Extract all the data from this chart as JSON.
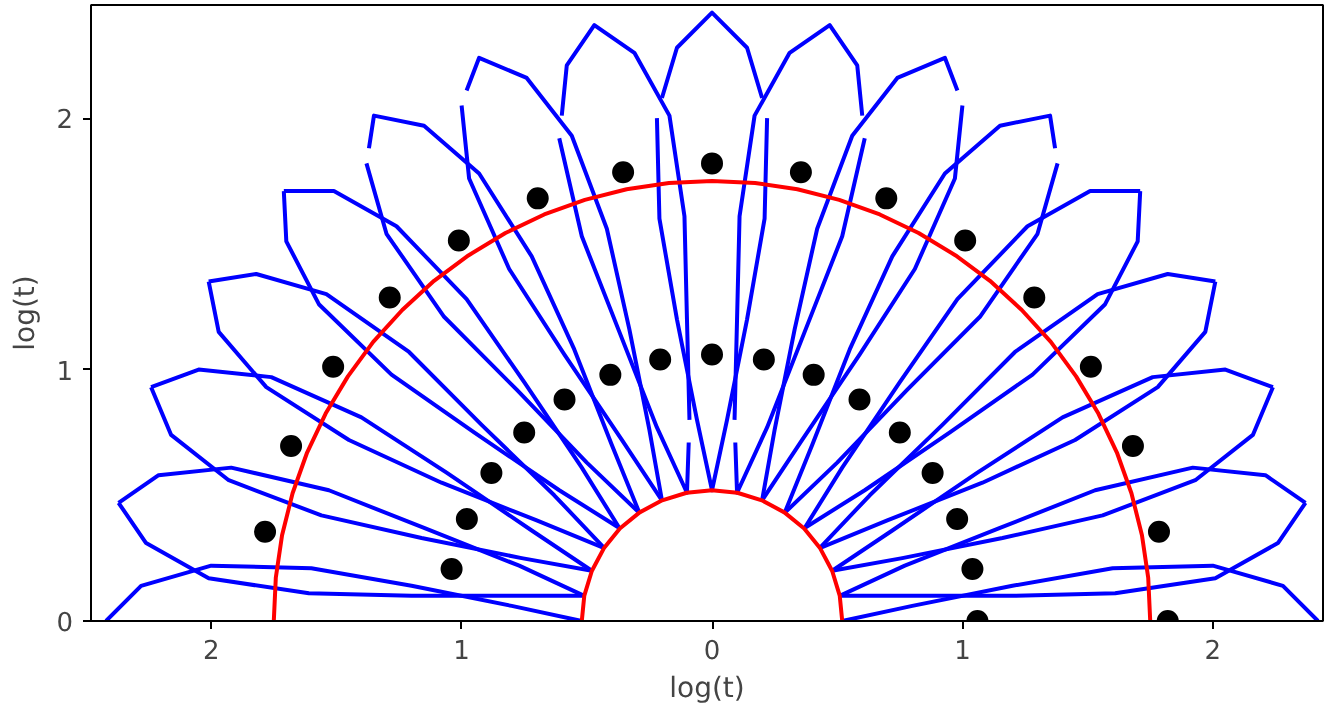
{
  "chart_data": {
    "type": "line",
    "xlabel": "log(t)",
    "ylabel": "log(t)",
    "xlim": [
      -2.48,
      2.44
    ],
    "ylim": [
      0,
      2.45
    ],
    "xticks": [
      {
        "value": -2,
        "label": "2"
      },
      {
        "value": -1,
        "label": "1"
      },
      0,
      1,
      2
    ],
    "yticks": [
      0,
      1,
      2
    ],
    "grid": false,
    "series": [
      {
        "color": "#0000ff",
        "x": [
          0.52,
          0.8,
          1.2,
          1.6,
          2.0,
          2.28,
          2.42
        ],
        "values": [
          0,
          0.06,
          0.14,
          0.21,
          0.22,
          0.14,
          0
        ]
      },
      {
        "color": "#0000ff",
        "x": [
          0.51,
          0.77,
          1.15,
          1.53,
          1.92,
          2.21,
          2.37
        ],
        "values": [
          0.1,
          0.22,
          0.37,
          0.52,
          0.61,
          0.58,
          0.47
        ]
      },
      {
        "color": "#0000ff",
        "x": [
          2.37,
          2.26,
          2.01,
          1.61,
          1.2,
          0.8,
          0.51
        ],
        "values": [
          0.47,
          0.31,
          0.17,
          0.11,
          0.1,
          0.1,
          0.1
        ]
      },
      {
        "color": "#0000ff",
        "x": [
          0.48,
          0.72,
          1.06,
          1.4,
          1.76,
          2.05,
          2.24
        ],
        "values": [
          0.2,
          0.36,
          0.59,
          0.81,
          0.97,
          1.0,
          0.93
        ]
      },
      {
        "color": "#0000ff",
        "x": [
          2.24,
          2.16,
          1.93,
          1.56,
          1.16,
          0.76,
          0.48
        ],
        "values": [
          0.93,
          0.74,
          0.56,
          0.42,
          0.33,
          0.25,
          0.2
        ]
      },
      {
        "color": "#0000ff",
        "x": [
          0.43,
          0.63,
          0.92,
          1.21,
          1.54,
          1.82,
          2.01
        ],
        "values": [
          0.29,
          0.5,
          0.78,
          1.07,
          1.3,
          1.38,
          1.35
        ]
      },
      {
        "color": "#0000ff",
        "x": [
          2.01,
          1.97,
          1.78,
          1.45,
          1.08,
          0.7,
          0.43
        ],
        "values": [
          1.35,
          1.15,
          0.93,
          0.72,
          0.55,
          0.4,
          0.29
        ]
      },
      {
        "color": "#0000ff",
        "x": [
          0.37,
          0.52,
          0.75,
          0.98,
          1.26,
          1.51,
          1.71
        ],
        "values": [
          0.37,
          0.61,
          0.95,
          1.28,
          1.57,
          1.71,
          1.71
        ]
      },
      {
        "color": "#0000ff",
        "x": [
          1.71,
          1.7,
          1.57,
          1.28,
          0.95,
          0.61,
          0.37
        ],
        "values": [
          1.71,
          1.51,
          1.26,
          0.98,
          0.75,
          0.52,
          0.37
        ]
      },
      {
        "color": "#0000ff",
        "x": [
          0.29,
          0.5,
          0.78,
          1.07,
          1.3,
          1.38
        ],
        "values": [
          0.43,
          0.63,
          0.92,
          1.21,
          1.54,
          1.82
        ]
      },
      {
        "color": "#0000ff",
        "x": [
          1.37,
          1.35,
          1.15,
          0.93,
          0.72,
          0.55,
          0.4,
          0.29
        ],
        "values": [
          1.88,
          2.01,
          1.97,
          1.78,
          1.45,
          1.08,
          0.7,
          0.43
        ]
      },
      {
        "color": "#0000ff",
        "x": [
          0.2,
          0.36,
          0.59,
          0.81,
          0.97,
          1.0
        ],
        "values": [
          0.48,
          0.72,
          1.06,
          1.4,
          1.76,
          2.05
        ]
      },
      {
        "color": "#0000ff",
        "x": [
          0.98,
          0.93,
          0.74,
          0.56,
          0.42,
          0.33,
          0.25,
          0.2
        ],
        "values": [
          2.11,
          2.24,
          2.16,
          1.93,
          1.56,
          1.16,
          0.76,
          0.48
        ]
      },
      {
        "color": "#0000ff",
        "x": [
          0.093,
          0.1,
          0.22,
          0.37,
          0.52,
          0.61
        ],
        "values": [
          0.71,
          0.51,
          0.77,
          1.15,
          1.53,
          1.92
        ]
      },
      {
        "color": "#0000ff",
        "x": [
          0.6,
          0.58,
          0.47,
          0.31,
          0.17,
          0.11,
          0.1,
          0.09
        ],
        "values": [
          2.01,
          2.21,
          2.37,
          2.26,
          2.01,
          1.61,
          1.2,
          0.8
        ]
      },
      {
        "color": "#0000ff",
        "x": [
          -0.22,
          -0.21,
          -0.14,
          -0.06,
          0,
          0.06,
          0.14,
          0.21,
          0.22
        ],
        "values": [
          2.0,
          1.6,
          1.2,
          0.8,
          0.52,
          0.8,
          1.2,
          1.6,
          2.0
        ]
      },
      {
        "color": "#0000ff",
        "x": [
          -0.2,
          -0.14,
          0,
          0.14,
          0.2
        ],
        "values": [
          2.08,
          2.28,
          2.42,
          2.28,
          2.08
        ]
      },
      {
        "color": "#0000ff",
        "x": [
          -0.52,
          -0.8,
          -1.2,
          -1.6,
          -2.0,
          -2.28,
          -2.42
        ],
        "values": [
          0,
          0.06,
          0.14,
          0.21,
          0.22,
          0.14,
          0
        ]
      },
      {
        "color": "#0000ff",
        "x": [
          -0.51,
          -0.77,
          -1.15,
          -1.53,
          -1.92,
          -2.21,
          -2.37
        ],
        "values": [
          0.1,
          0.22,
          0.37,
          0.52,
          0.61,
          0.58,
          0.47
        ]
      },
      {
        "color": "#0000ff",
        "x": [
          -2.37,
          -2.26,
          -2.01,
          -1.61,
          -1.2,
          -0.8,
          -0.51
        ],
        "values": [
          0.47,
          0.31,
          0.17,
          0.11,
          0.1,
          0.1,
          0.1
        ]
      },
      {
        "color": "#0000ff",
        "x": [
          -0.48,
          -0.72,
          -1.06,
          -1.4,
          -1.76,
          -2.05,
          -2.24
        ],
        "values": [
          0.2,
          0.36,
          0.59,
          0.81,
          0.97,
          1.0,
          0.93
        ]
      },
      {
        "color": "#0000ff",
        "x": [
          -2.24,
          -2.16,
          -1.93,
          -1.56,
          -1.16,
          -0.76,
          -0.48
        ],
        "values": [
          0.93,
          0.74,
          0.56,
          0.42,
          0.33,
          0.25,
          0.2
        ]
      },
      {
        "color": "#0000ff",
        "x": [
          -0.43,
          -0.63,
          -0.92,
          -1.21,
          -1.54,
          -1.82,
          -2.01
        ],
        "values": [
          0.29,
          0.5,
          0.78,
          1.07,
          1.3,
          1.38,
          1.35
        ]
      },
      {
        "color": "#0000ff",
        "x": [
          -2.01,
          -1.97,
          -1.78,
          -1.45,
          -1.08,
          -0.7,
          -0.43
        ],
        "values": [
          1.35,
          1.15,
          0.93,
          0.72,
          0.55,
          0.4,
          0.29
        ]
      },
      {
        "color": "#0000ff",
        "x": [
          -0.37,
          -0.52,
          -0.75,
          -0.98,
          -1.26,
          -1.51,
          -1.71
        ],
        "values": [
          0.37,
          0.61,
          0.95,
          1.28,
          1.57,
          1.71,
          1.71
        ]
      },
      {
        "color": "#0000ff",
        "x": [
          -1.71,
          -1.7,
          -1.57,
          -1.28,
          -0.95,
          -0.61,
          -0.37
        ],
        "values": [
          1.71,
          1.51,
          1.26,
          0.98,
          0.75,
          0.52,
          0.37
        ]
      },
      {
        "color": "#0000ff",
        "x": [
          -0.29,
          -0.5,
          -0.78,
          -1.07,
          -1.3,
          -1.38
        ],
        "values": [
          0.43,
          0.63,
          0.92,
          1.21,
          1.54,
          1.82
        ]
      },
      {
        "color": "#0000ff",
        "x": [
          -1.37,
          -1.35,
          -1.15,
          -0.93,
          -0.72,
          -0.55,
          -0.4,
          -0.29
        ],
        "values": [
          1.88,
          2.01,
          1.97,
          1.78,
          1.45,
          1.08,
          0.7,
          0.43
        ]
      },
      {
        "color": "#0000ff",
        "x": [
          -0.2,
          -0.36,
          -0.59,
          -0.81,
          -0.97,
          -1.0
        ],
        "values": [
          0.48,
          0.72,
          1.06,
          1.4,
          1.76,
          2.05
        ]
      },
      {
        "color": "#0000ff",
        "x": [
          -0.98,
          -0.93,
          -0.74,
          -0.56,
          -0.42,
          -0.33,
          -0.25,
          -0.2
        ],
        "values": [
          2.11,
          2.24,
          2.16,
          1.93,
          1.56,
          1.16,
          0.76,
          0.48
        ]
      },
      {
        "color": "#0000ff",
        "x": [
          -0.093,
          -0.1,
          -0.22,
          -0.37,
          -0.52,
          -0.61
        ],
        "values": [
          0.71,
          0.51,
          0.77,
          1.15,
          1.53,
          1.92
        ]
      },
      {
        "color": "#0000ff",
        "x": [
          -0.6,
          -0.58,
          -0.47,
          -0.31,
          -0.17,
          -0.11,
          -0.1,
          -0.09
        ],
        "values": [
          2.01,
          2.21,
          2.37,
          2.26,
          2.01,
          1.61,
          1.2,
          0.8
        ]
      },
      {
        "color": "#ff0000",
        "x": [
          1.75,
          1.742,
          1.717,
          1.675,
          1.617,
          1.543,
          1.454,
          1.353,
          1.237,
          1.11,
          0.973,
          0.825,
          0.67,
          0.508,
          0.341,
          0.172,
          0,
          -0.172,
          -0.341,
          -0.508,
          -0.67,
          -0.825,
          -0.973,
          -1.11,
          -1.237,
          -1.353,
          -1.454,
          -1.543,
          -1.617,
          -1.675,
          -1.717,
          -1.742,
          -1.75
        ],
        "values": [
          0,
          0.172,
          0.341,
          0.508,
          0.67,
          0.825,
          0.973,
          1.11,
          1.237,
          1.353,
          1.454,
          1.543,
          1.617,
          1.675,
          1.717,
          1.742,
          1.75,
          1.742,
          1.717,
          1.675,
          1.617,
          1.543,
          1.454,
          1.353,
          1.237,
          1.11,
          0.973,
          0.825,
          0.67,
          0.508,
          0.341,
          0.172,
          0
        ]
      },
      {
        "color": "#ff0000",
        "x": [
          0.52,
          0.51,
          0.48,
          0.432,
          0.368,
          0.289,
          0.199,
          0.101,
          0,
          -0.101,
          -0.199,
          -0.289,
          -0.368,
          -0.432,
          -0.48,
          -0.51,
          -0.52
        ],
        "values": [
          0,
          0.101,
          0.199,
          0.289,
          0.368,
          0.432,
          0.48,
          0.51,
          0.52,
          0.51,
          0.48,
          0.432,
          0.368,
          0.289,
          0.199,
          0.101,
          0
        ]
      },
      {
        "type": "scatter",
        "marker": "circle",
        "color": "#000000",
        "x": [
          1.82,
          1.785,
          1.681,
          1.513,
          1.287,
          1.011,
          0.696,
          0.355,
          0,
          -0.355,
          -0.696,
          -1.011,
          -1.287,
          -1.513,
          -1.681,
          -1.785
        ],
        "values": [
          0,
          0.355,
          0.696,
          1.011,
          1.287,
          1.513,
          1.681,
          1.785,
          1.82,
          1.785,
          1.681,
          1.513,
          1.287,
          1.011,
          0.696,
          0.355
        ]
      },
      {
        "type": "scatter",
        "marker": "circle",
        "color": "#000000",
        "x": [
          1.06,
          1.04,
          0.979,
          0.881,
          0.75,
          0.589,
          0.406,
          0.207,
          0,
          -0.207,
          -0.406,
          -0.589,
          -0.75,
          -0.881,
          -0.979,
          -1.04
        ],
        "values": [
          0,
          0.207,
          0.406,
          0.589,
          0.75,
          0.881,
          0.979,
          1.04,
          1.06,
          1.04,
          0.979,
          0.881,
          0.75,
          0.589,
          0.406,
          0.207
        ]
      }
    ]
  }
}
